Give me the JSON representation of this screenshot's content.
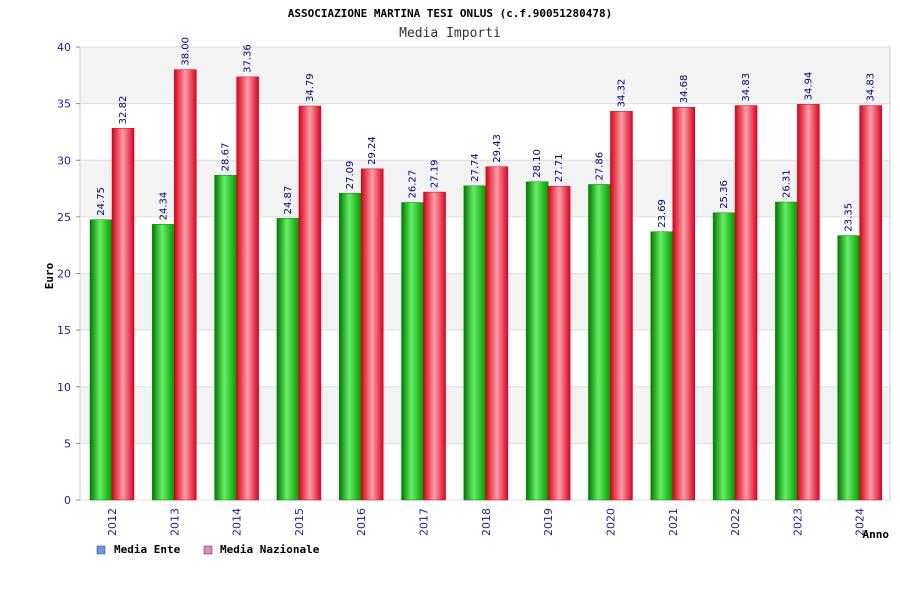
{
  "chart_data": {
    "type": "bar",
    "title": "ASSOCIAZIONE MARTINA TESI ONLUS (c.f.90051280478)",
    "subtitle": "Media Importi",
    "xlabel": "Anno",
    "ylabel": "Euro",
    "ylim": [
      0,
      40
    ],
    "yticks": [
      0,
      5,
      10,
      15,
      20,
      25,
      30,
      35,
      40
    ],
    "grid": true,
    "legend_position": "bottom-left",
    "categories": [
      "2012",
      "2013",
      "2014",
      "2015",
      "2016",
      "2017",
      "2018",
      "2019",
      "2020",
      "2021",
      "2022",
      "2023",
      "2024"
    ],
    "series": [
      {
        "name": "Media Ente",
        "color": "#00b000",
        "legend_color": "#6699ee",
        "values": [
          24.75,
          24.34,
          28.67,
          24.87,
          27.09,
          26.27,
          27.74,
          28.1,
          27.86,
          23.69,
          25.36,
          26.31,
          23.35
        ],
        "labels": [
          "24.75",
          "24.34",
          "28.67",
          "24.87",
          "27.09",
          "26.27",
          "27.74",
          "28.10",
          "27.86",
          "23.69",
          "25.36",
          "26.31",
          "23.35"
        ]
      },
      {
        "name": "Media Nazionale",
        "color": "#ee0022",
        "legend_color": "#dd88bb",
        "values": [
          32.82,
          38.0,
          37.36,
          34.79,
          29.24,
          27.19,
          29.43,
          27.71,
          34.32,
          34.68,
          34.83,
          34.94,
          34.83
        ],
        "labels": [
          "32.82",
          "38.00",
          "37.36",
          "34.79",
          "29.24",
          "27.19",
          "29.43",
          "27.71",
          "34.32",
          "34.68",
          "34.83",
          "34.94",
          "34.83"
        ]
      }
    ]
  }
}
